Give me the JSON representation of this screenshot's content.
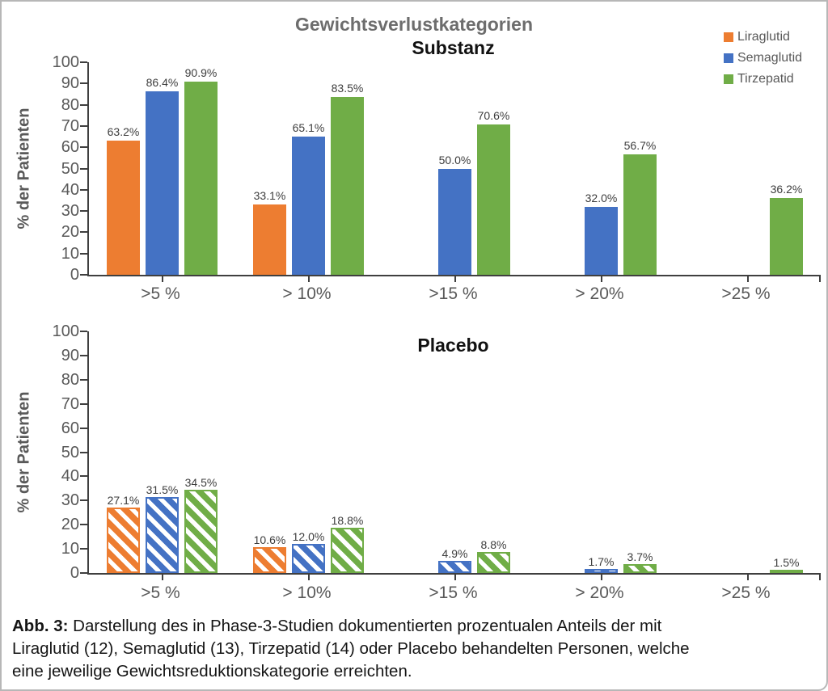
{
  "figure": {
    "title": "Gewichtsverlustkategorien",
    "caption_label": "Abb. 3:",
    "caption_lines": [
      "Darstellung des in Phase-3-Studien dokumentierten prozentualen Anteils der mit",
      "Liraglutid (12), Semaglutid (13), Tirzepatid (14) oder Placebo behandelten Personen, welche",
      "eine jeweilige Gewichtsreduktionskategorie erreichten."
    ]
  },
  "legend": {
    "position": "top-right",
    "items": [
      {
        "label": "Liraglutid",
        "color": "#ED7D31"
      },
      {
        "label": "Semaglutid",
        "color": "#4472C4"
      },
      {
        "label": "Tirzepatid",
        "color": "#70AD47"
      }
    ]
  },
  "axes": {
    "yticks": [
      0,
      10,
      20,
      30,
      40,
      50,
      60,
      70,
      80,
      90,
      100
    ],
    "axis_color": "#3f3f3f",
    "tick_label_color": "#595959"
  },
  "chart_data": [
    {
      "type": "bar",
      "title": "Substanz",
      "ylabel": "% der Patienten",
      "ylim": [
        0,
        100
      ],
      "grid": false,
      "bar_style": "solid",
      "value_label_suffix": "%",
      "categories": [
        ">5 %",
        "> 10%",
        ">15 %",
        "> 20%",
        ">25 %"
      ],
      "series": [
        {
          "name": "Liraglutid",
          "color": "#ED7D31",
          "values": [
            63.2,
            33.1,
            null,
            null,
            null
          ]
        },
        {
          "name": "Semaglutid",
          "color": "#4472C4",
          "values": [
            86.4,
            65.1,
            50.0,
            32.0,
            null
          ]
        },
        {
          "name": "Tirzepatid",
          "color": "#70AD47",
          "values": [
            90.9,
            83.5,
            70.6,
            56.7,
            36.2
          ]
        }
      ]
    },
    {
      "type": "bar",
      "title": "Placebo",
      "ylabel": "% der Patienten",
      "ylim": [
        0,
        100
      ],
      "grid": false,
      "bar_style": "hatched",
      "value_label_suffix": "%",
      "categories": [
        ">5 %",
        "> 10%",
        ">15 %",
        "> 20%",
        ">25 %"
      ],
      "series": [
        {
          "name": "Liraglutid",
          "color": "#ED7D31",
          "values": [
            27.1,
            10.6,
            null,
            null,
            null
          ]
        },
        {
          "name": "Semaglutid",
          "color": "#4472C4",
          "values": [
            31.5,
            12.0,
            4.9,
            1.7,
            null
          ]
        },
        {
          "name": "Tirzepatid",
          "color": "#70AD47",
          "values": [
            34.5,
            18.8,
            8.8,
            3.7,
            1.5
          ]
        }
      ]
    }
  ]
}
